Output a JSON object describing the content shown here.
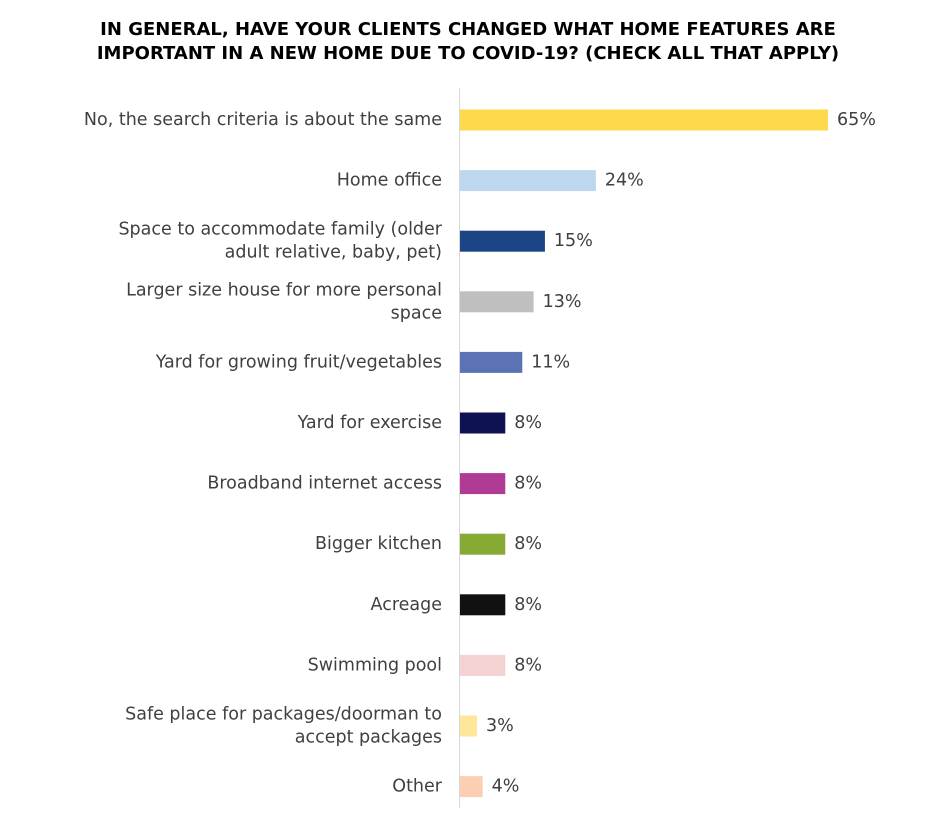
{
  "chart_data": {
    "type": "bar",
    "orientation": "horizontal",
    "title_lines": [
      "IN GENERAL, HAVE YOUR CLIENTS CHANGED WHAT HOME FEATURES ARE",
      "IMPORTANT IN A NEW HOME DUE TO COVID-19? (CHECK ALL THAT APPLY)"
    ],
    "xlim": [
      0,
      70
    ],
    "grid": false,
    "legend": "none",
    "value_suffix": "%",
    "categories": [
      [
        "No, the search criteria is about the same"
      ],
      [
        "Home office"
      ],
      [
        "Space to accommodate family (older",
        "adult relative, baby, pet)"
      ],
      [
        "Larger size house for more personal",
        "space"
      ],
      [
        "Yard for growing fruit/vegetables"
      ],
      [
        "Yard for exercise"
      ],
      [
        "Broadband internet access"
      ],
      [
        "Bigger kitchen"
      ],
      [
        "Acreage"
      ],
      [
        "Swimming pool"
      ],
      [
        "Safe place for packages/doorman to",
        "accept packages"
      ],
      [
        "Other"
      ]
    ],
    "values": [
      65,
      24,
      15,
      13,
      11,
      8,
      8,
      8,
      8,
      8,
      3,
      4
    ],
    "value_labels": [
      "65%",
      "24%",
      "15%",
      "13%",
      "11%",
      "8%",
      "8%",
      "8%",
      "8%",
      "8%",
      "3%",
      "4%"
    ],
    "colors": [
      "#FDD94B",
      "#BDD7EE",
      "#1B4584",
      "#BFBFBF",
      "#5B73B5",
      "#0E1152",
      "#B03A94",
      "#86AA34",
      "#111111",
      "#F4D2D2",
      "#FFE699",
      "#FCCFB2"
    ]
  }
}
